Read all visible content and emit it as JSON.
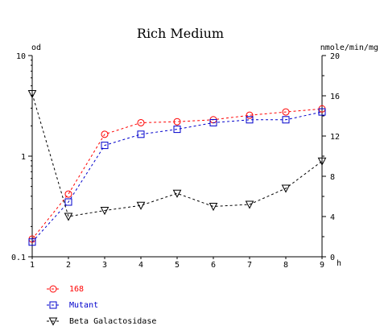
{
  "chart_data": {
    "type": "line",
    "title": "Rich Medium",
    "xlabel": "h",
    "y_left_label": "od",
    "y_right_label": "nmole/min/mg",
    "x": [
      1,
      2,
      3,
      4,
      5,
      6,
      7,
      8,
      9
    ],
    "x_ticks": [
      "1",
      "2",
      "3",
      "4",
      "5",
      "6",
      "7",
      "8",
      "9"
    ],
    "y_left_scale": "log",
    "y_left_range": [
      0.1,
      10
    ],
    "y_left_ticks": [
      "0.1",
      "1",
      "10"
    ],
    "y_right_range": [
      0,
      20
    ],
    "y_right_ticks": [
      "0",
      "4",
      "8",
      "12",
      "16",
      "20"
    ],
    "grid": false,
    "legend_position": "bottom-left",
    "series": [
      {
        "name": "168",
        "axis": "left",
        "color": "#ff0000",
        "marker": "circle",
        "values": [
          0.15,
          0.42,
          1.65,
          2.15,
          2.2,
          2.3,
          2.55,
          2.75,
          2.95
        ]
      },
      {
        "name": "Mutant",
        "axis": "left",
        "color": "#0000cc",
        "marker": "square",
        "values": [
          0.14,
          0.35,
          1.28,
          1.65,
          1.85,
          2.15,
          2.3,
          2.3,
          2.75
        ]
      },
      {
        "name": "Beta Galactosidase",
        "axis": "right",
        "color": "#000000",
        "marker": "triangle-down",
        "values": [
          16.2,
          4.0,
          4.6,
          5.1,
          6.3,
          5.0,
          5.2,
          6.8,
          9.5
        ]
      }
    ]
  }
}
